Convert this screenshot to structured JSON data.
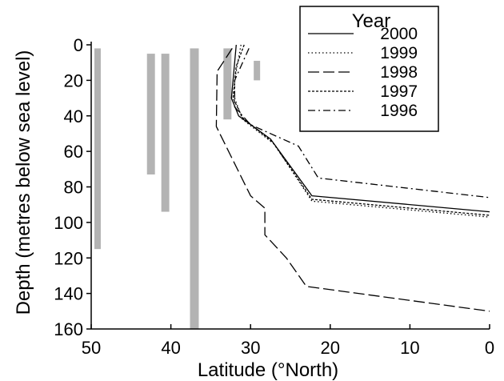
{
  "chart_data": {
    "type": "line",
    "xlabel": "Latitude (°North)",
    "ylabel": "Depth (metres below sea level)",
    "xlim": [
      50,
      0
    ],
    "ylim": [
      0,
      160
    ],
    "x_reversed": true,
    "y_inverted": true,
    "xticks": [
      "50",
      "40",
      "30",
      "20",
      "10",
      "0"
    ],
    "yticks": [
      "0",
      "20",
      "40",
      "60",
      "80",
      "100",
      "120",
      "140",
      "160"
    ],
    "legend": {
      "title": "Year",
      "placement": "top-right"
    },
    "series": [
      {
        "name": "2000",
        "style": "solid",
        "points": [
          [
            31.8,
            0
          ],
          [
            32.2,
            20
          ],
          [
            32.4,
            30
          ],
          [
            31.5,
            40
          ],
          [
            27.5,
            53
          ],
          [
            22.3,
            85
          ],
          [
            0,
            94
          ]
        ]
      },
      {
        "name": "1999",
        "style": "dotted",
        "points": [
          [
            31.2,
            0
          ],
          [
            32.0,
            20
          ],
          [
            32.0,
            30
          ],
          [
            31.0,
            42
          ],
          [
            27.0,
            56
          ],
          [
            22.3,
            88
          ],
          [
            0,
            97
          ]
        ]
      },
      {
        "name": "1998",
        "style": "long-dash",
        "points": [
          [
            32.3,
            2
          ],
          [
            34.2,
            15
          ],
          [
            34.3,
            46
          ],
          [
            30.0,
            85
          ],
          [
            28.2,
            92
          ],
          [
            28.2,
            107
          ],
          [
            25.5,
            120
          ],
          [
            23.0,
            136
          ],
          [
            0,
            150
          ]
        ]
      },
      {
        "name": "1997",
        "style": "short-dash",
        "points": [
          [
            30.8,
            0
          ],
          [
            31.8,
            12
          ],
          [
            32.2,
            30
          ],
          [
            31.0,
            41
          ],
          [
            27.2,
            55
          ],
          [
            22.3,
            87
          ],
          [
            0,
            96
          ]
        ]
      },
      {
        "name": "1996",
        "style": "dash-dot",
        "points": [
          [
            30.2,
            2
          ],
          [
            32.0,
            20
          ],
          [
            32.0,
            35
          ],
          [
            30.0,
            45
          ],
          [
            26.5,
            52
          ],
          [
            24.0,
            57
          ],
          [
            21.5,
            75
          ],
          [
            0,
            86
          ]
        ]
      }
    ],
    "bars": [
      {
        "x_left": 49.6,
        "x_right": 48.8,
        "y_top": 2,
        "y_bottom": 115
      },
      {
        "x_left": 43.0,
        "x_right": 42.0,
        "y_top": 5,
        "y_bottom": 73
      },
      {
        "x_left": 41.2,
        "x_right": 40.2,
        "y_top": 5,
        "y_bottom": 94
      },
      {
        "x_left": 37.6,
        "x_right": 36.5,
        "y_top": 2,
        "y_bottom": 160
      },
      {
        "x_left": 33.4,
        "x_right": 32.4,
        "y_top": 2,
        "y_bottom": 42
      },
      {
        "x_left": 29.6,
        "x_right": 28.8,
        "y_top": 9,
        "y_bottom": 20
      }
    ],
    "bar_color": "#b3b3b3",
    "line_color": "#000000"
  }
}
